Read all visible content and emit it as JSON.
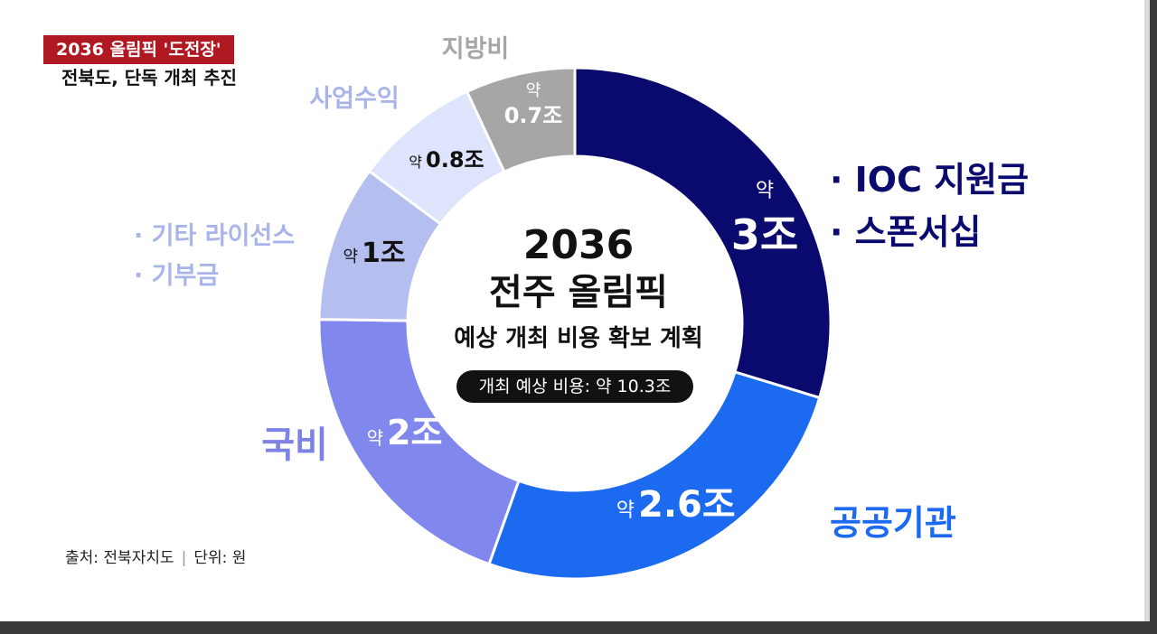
{
  "topic": {
    "label": "2036 올림픽 '도전장'"
  },
  "subtitle": "전북도, 단독 개최 추진",
  "center": {
    "line1": "2036",
    "line2": "전주 올림픽",
    "line3": "예상 개최 비용 확보 계획",
    "pill": "개최 예상 비용: 약 10.3조"
  },
  "footer": {
    "source": "출처: 전북자치도",
    "separator": "|",
    "unit": "단위: 원"
  },
  "chart_data": {
    "type": "pie",
    "style": "donut",
    "total": 10.3,
    "unit": "조",
    "slices": [
      {
        "value": 3.0,
        "prefix": "약",
        "label_text": "3조",
        "categories": [
          "· IOC 지원금",
          "· 스폰서십"
        ],
        "color": "#0a0a6e",
        "text_color": "#ffffff",
        "cat_color": "#0a0a6e"
      },
      {
        "value": 2.6,
        "prefix": "약",
        "label_text": "2.6조",
        "categories": [
          "공공기관"
        ],
        "color": "#1c6af0",
        "text_color": "#ffffff",
        "cat_color": "#1c6af0"
      },
      {
        "value": 2.0,
        "prefix": "약",
        "label_text": "2조",
        "categories": [
          "국비"
        ],
        "color": "#8088ee",
        "text_color": "#ffffff",
        "cat_color": "#7c82e6"
      },
      {
        "value": 1.0,
        "prefix": "약",
        "label_text": "1조",
        "categories": [
          "· 기타 라이선스",
          "· 기부금"
        ],
        "color": "#b4bff0",
        "text_color": "#111111",
        "cat_color": "#a9b4e8"
      },
      {
        "value": 0.8,
        "prefix": "약",
        "label_text": "0.8조",
        "categories": [
          "사업수익"
        ],
        "color": "#dde4fb",
        "text_color": "#111111",
        "cat_color": "#a9b4e8"
      },
      {
        "value": 0.7,
        "prefix": "약",
        "label_text": "0.7조",
        "categories": [
          "지방비"
        ],
        "color": "#a6a6a6",
        "text_color": "#ffffff",
        "cat_color": "#a6a6a6"
      }
    ]
  }
}
